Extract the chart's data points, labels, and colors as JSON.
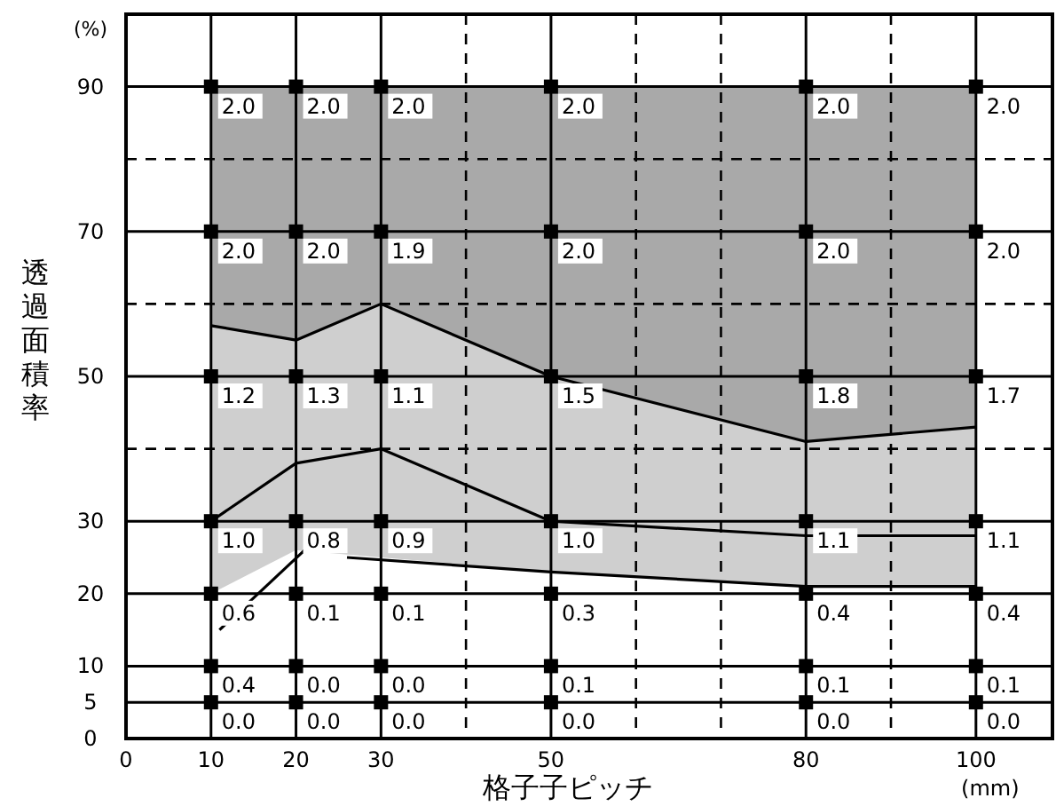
{
  "chart_data": {
    "type": "scatter",
    "xlabel": "格子子ピッチ",
    "ylabel": "透過面積率",
    "annotations": [
      "(%)",
      "(mm)",
      {
        "text": "2.0",
        "x": 10,
        "y": 90
      },
      {
        "text": "2.0",
        "x": 20,
        "y": 90
      },
      {
        "text": "2.0",
        "x": 30,
        "y": 90
      },
      {
        "text": "2.0",
        "x": 50,
        "y": 90
      },
      {
        "text": "2.0",
        "x": 80,
        "y": 90
      },
      {
        "text": "2.0",
        "x": 100,
        "y": 90
      },
      {
        "text": "2.0",
        "x": 10,
        "y": 70
      },
      {
        "text": "2.0",
        "x": 20,
        "y": 70
      },
      {
        "text": "1.9",
        "x": 30,
        "y": 70
      },
      {
        "text": "2.0",
        "x": 50,
        "y": 70
      },
      {
        "text": "2.0",
        "x": 80,
        "y": 70
      },
      {
        "text": "2.0",
        "x": 100,
        "y": 70
      },
      {
        "text": "1.2",
        "x": 10,
        "y": 50
      },
      {
        "text": "1.3",
        "x": 20,
        "y": 50
      },
      {
        "text": "1.1",
        "x": 30,
        "y": 50
      },
      {
        "text": "1.5",
        "x": 50,
        "y": 50
      },
      {
        "text": "1.8",
        "x": 80,
        "y": 50
      },
      {
        "text": "1.7",
        "x": 100,
        "y": 50
      },
      {
        "text": "1.0",
        "x": 10,
        "y": 30
      },
      {
        "text": "0.8",
        "x": 20,
        "y": 30
      },
      {
        "text": "0.9",
        "x": 30,
        "y": 30
      },
      {
        "text": "1.0",
        "x": 50,
        "y": 30
      },
      {
        "text": "1.1",
        "x": 80,
        "y": 30
      },
      {
        "text": "1.1",
        "x": 100,
        "y": 30
      },
      {
        "text": "0.6",
        "x": 10,
        "y": 20
      },
      {
        "text": "0.1",
        "x": 20,
        "y": 20
      },
      {
        "text": "0.1",
        "x": 30,
        "y": 20
      },
      {
        "text": "0.3",
        "x": 50,
        "y": 20
      },
      {
        "text": "0.4",
        "x": 80,
        "y": 20
      },
      {
        "text": "0.4",
        "x": 100,
        "y": 20
      },
      {
        "text": "0.4",
        "x": 10,
        "y": 10
      },
      {
        "text": "0.0",
        "x": 20,
        "y": 10
      },
      {
        "text": "0.0",
        "x": 30,
        "y": 10
      },
      {
        "text": "0.1",
        "x": 50,
        "y": 10
      },
      {
        "text": "0.1",
        "x": 80,
        "y": 10
      },
      {
        "text": "0.1",
        "x": 100,
        "y": 10
      },
      {
        "text": "0.0",
        "x": 10,
        "y": 5
      },
      {
        "text": "0.0",
        "x": 20,
        "y": 5
      },
      {
        "text": "0.0",
        "x": 30,
        "y": 5
      },
      {
        "text": "0.0",
        "x": 50,
        "y": 5
      },
      {
        "text": "0.0",
        "x": 80,
        "y": 5
      },
      {
        "text": "0.0",
        "x": 100,
        "y": 5
      }
    ],
    "x": [
      10,
      20,
      30,
      50,
      80,
      100
    ],
    "xlim": [
      0,
      109
    ],
    "ylim": [
      0,
      100
    ],
    "xticks": [
      0,
      10,
      20,
      30,
      50,
      80,
      100
    ],
    "yticks": [
      0,
      5,
      10,
      20,
      30,
      50,
      70,
      90
    ],
    "grid": true,
    "marker": "square",
    "ref_lines": [
      {
        "axis": "y",
        "value": 40,
        "line_style": "dashed",
        "color": "#000000"
      },
      {
        "axis": "y",
        "value": 60,
        "line_style": "dashed",
        "color": "#000000"
      },
      {
        "axis": "y",
        "value": 80,
        "line_style": "dashed",
        "color": "#000000"
      },
      {
        "axis": "x",
        "value": 40,
        "line_style": "dashed",
        "color": "#000000"
      },
      {
        "axis": "x",
        "value": 60,
        "line_style": "dashed",
        "color": "#000000"
      },
      {
        "axis": "x",
        "value": 70,
        "line_style": "dashed",
        "color": "#000000"
      },
      {
        "axis": "x",
        "value": 90,
        "line_style": "dashed",
        "color": "#000000"
      }
    ],
    "series": [
      {
        "type": "line",
        "color": "#000000",
        "marker": "none",
        "values": [
          57,
          55,
          60,
          50,
          41,
          43
        ],
        "lower": [
          57,
          55,
          60,
          50,
          41,
          43
        ],
        "upper": [
          90,
          90,
          90,
          90,
          90,
          90
        ]
      },
      {
        "type": "line",
        "color": "#000000",
        "marker": "none",
        "values": [
          30,
          38,
          40,
          30,
          28,
          28
        ],
        "lower": [
          20,
          26,
          25,
          23,
          21,
          21
        ],
        "upper": [
          57,
          55,
          60,
          50,
          41,
          43
        ]
      },
      {
        "type": "line",
        "color": "#000000",
        "marker": "none",
        "x": [
          11,
          21
        ],
        "values": [
          15,
          26
        ]
      },
      {
        "type": "line",
        "color": "#000000",
        "marker": "none",
        "x": [
          26,
          50,
          80,
          100
        ],
        "values": [
          25,
          23,
          21,
          21
        ]
      },
      {
        "color": "#000000",
        "values": [
          90,
          90,
          90,
          90,
          90,
          90
        ]
      },
      {
        "color": "#000000",
        "values": [
          70,
          70,
          70,
          70,
          70,
          70
        ]
      },
      {
        "color": "#000000",
        "values": [
          50,
          50,
          50,
          50,
          50,
          50
        ]
      },
      {
        "color": "#000000",
        "values": [
          30,
          30,
          30,
          30,
          30,
          30
        ]
      },
      {
        "color": "#000000",
        "values": [
          20,
          20,
          20,
          20,
          20,
          20
        ]
      },
      {
        "color": "#000000",
        "values": [
          10,
          10,
          10,
          10,
          10,
          10
        ]
      },
      {
        "color": "#000000",
        "values": [
          5,
          5,
          5,
          5,
          5,
          5
        ]
      }
    ]
  }
}
